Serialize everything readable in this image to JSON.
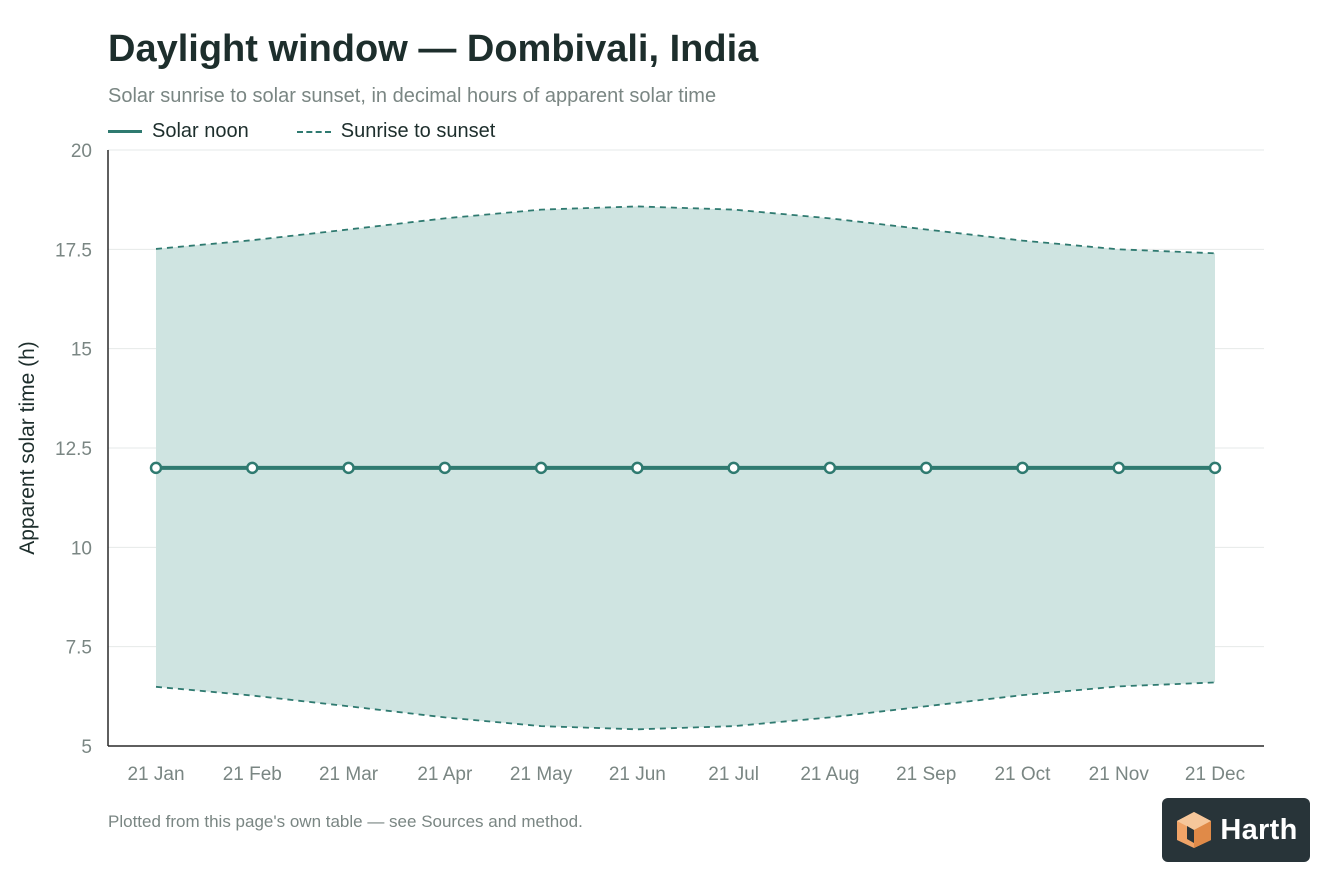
{
  "title": "Daylight window — Dombivali, India",
  "subtitle": "Solar sunrise to solar sunset, in decimal hours of apparent solar time",
  "legend": {
    "noon": "Solar noon",
    "window": "Sunrise to sunset"
  },
  "footnote": "Plotted from this page's own table — see Sources and method.",
  "logo": {
    "text": "Harth",
    "icon": "cube-logo-icon"
  },
  "colors": {
    "line": "#2f7a70",
    "band": "#cfe4e1",
    "axis": "#2a2a2a",
    "grid": "#e6e9e8",
    "tick_text": "#7a8683",
    "text": "#1d2e2c",
    "logo_bg": "#283439",
    "logo_accent": "#f0a468"
  },
  "chart_data": {
    "type": "line",
    "title": "Daylight window — Dombivali, India",
    "subtitle": "Solar sunrise to solar sunset, in decimal hours of apparent solar time",
    "xlabel": "",
    "ylabel": "Apparent solar time (h)",
    "ylim": [
      5,
      20
    ],
    "yticks": [
      5,
      7.5,
      10,
      12.5,
      15,
      17.5,
      20
    ],
    "ytick_labels": [
      "5",
      "7.5",
      "10",
      "12.5",
      "15",
      "17.5",
      "20"
    ],
    "grid": true,
    "legend_position": "top-left",
    "categories": [
      "21 Jan",
      "21 Feb",
      "21 Mar",
      "21 Apr",
      "21 May",
      "21 Jun",
      "21 Jul",
      "21 Aug",
      "21 Sep",
      "21 Oct",
      "21 Nov",
      "21 Dec"
    ],
    "series": [
      {
        "name": "Solar noon",
        "style": "solid-markers",
        "values": [
          12,
          12,
          12,
          12,
          12,
          12,
          12,
          12,
          12,
          12,
          12,
          12
        ]
      },
      {
        "name": "Sunrise to sunset",
        "style": "dashed-band",
        "sunrise": [
          6.49,
          6.27,
          6.0,
          5.72,
          5.5,
          5.42,
          5.5,
          5.72,
          6.0,
          6.28,
          6.5,
          6.6
        ],
        "sunset": [
          17.51,
          17.73,
          18.0,
          18.28,
          18.5,
          18.58,
          18.5,
          18.28,
          18.0,
          17.72,
          17.5,
          17.4
        ]
      }
    ]
  }
}
